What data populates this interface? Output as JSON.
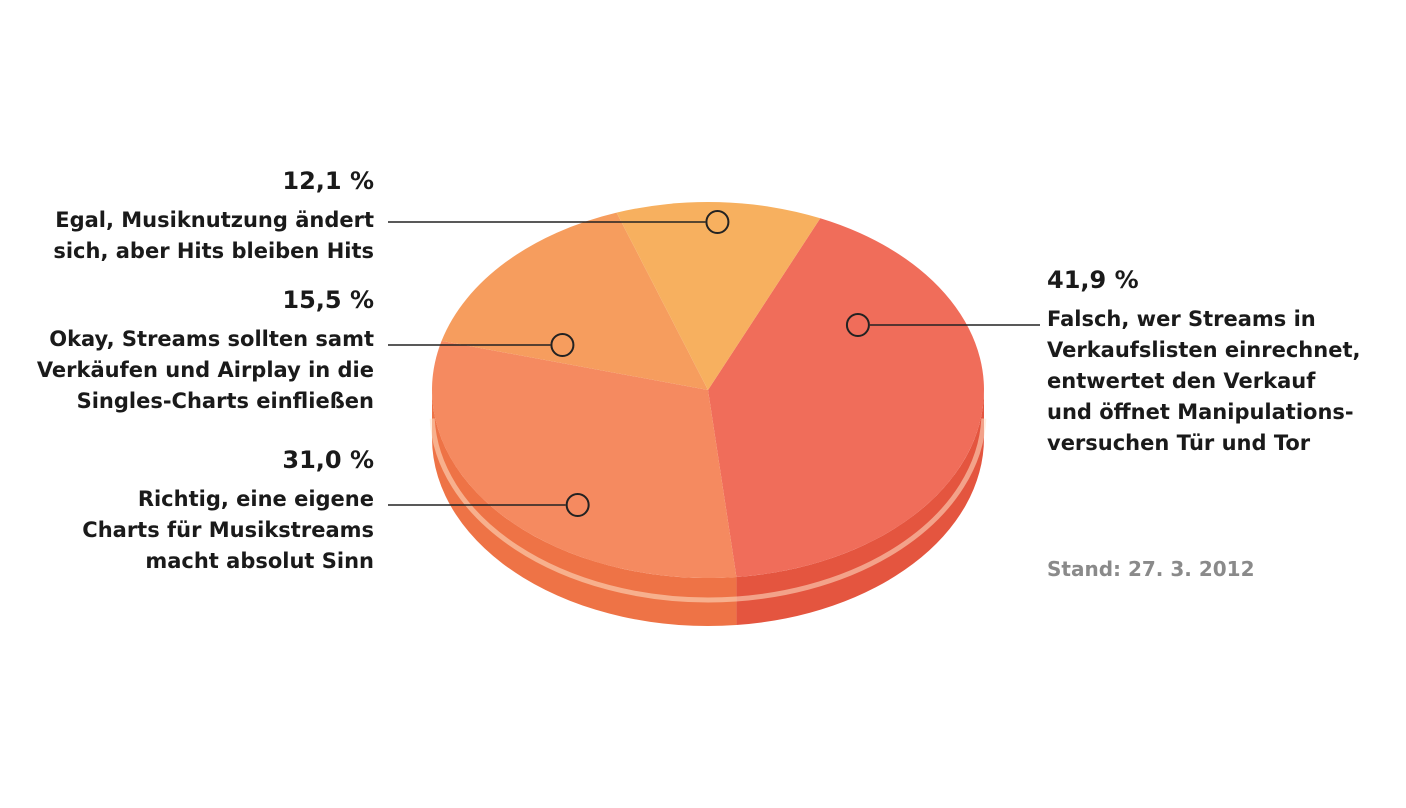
{
  "chart_data": {
    "type": "pie",
    "slices": [
      {
        "value": 41.9,
        "percent_label": "41,9 %",
        "label_lines": [
          "Falsch, wer Streams in",
          "Verkaufslisten einrechnet,",
          "entwertet den Verkauf",
          "und öffnet Manipulations-",
          "versuchen Tür und Tor"
        ],
        "color": "#f06d5a",
        "side_color": "#e4553f"
      },
      {
        "value": 31.0,
        "percent_label": "31,0 %",
        "label_lines": [
          "Richtig, eine eigene",
          "Charts für Musikstreams",
          "macht absolut Sinn"
        ],
        "color": "#f58a60",
        "side_color": "#ee7346"
      },
      {
        "value": 15.5,
        "percent_label": "15,5 %",
        "label_lines": [
          "Okay, Streams sollten samt",
          "Verkäufen und Airplay in die",
          "Singles-Charts einfließen"
        ],
        "color": "#f69d5e",
        "side_color": "#ef8244"
      },
      {
        "value": 12.1,
        "percent_label": "12,1 %",
        "label_lines": [
          "Egal, Musiknutzung ändert",
          "sich, aber Hits bleiben Hits"
        ],
        "color": "#f7b05f",
        "side_color": "#ef9544"
      }
    ],
    "note": "Stand: 27. 3. 2012"
  }
}
